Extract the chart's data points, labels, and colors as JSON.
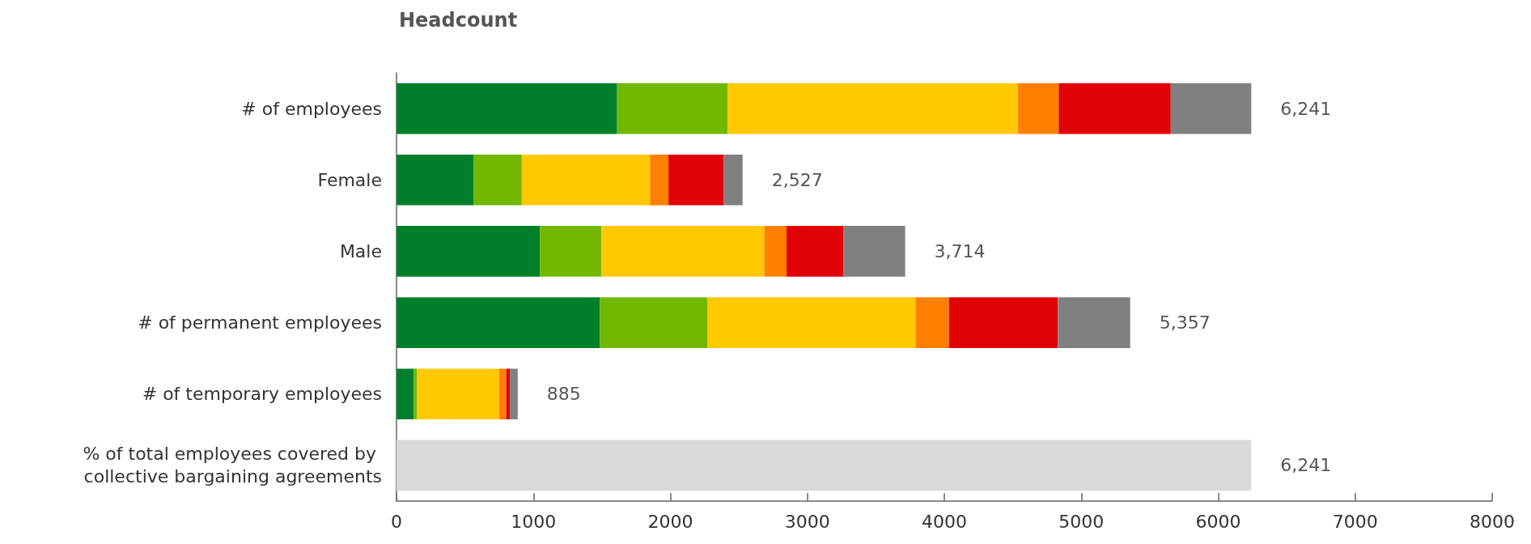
{
  "chart_data": {
    "type": "bar",
    "orientation": "horizontal",
    "stacked": true,
    "title": "Headcount",
    "categories": [
      "# of employees",
      "Female",
      "Male",
      "# of permanent employees",
      "# of temporary employees",
      "% of total employees covered by collective bargaining agreements"
    ],
    "series": [
      {
        "color": "#007f2b",
        "values": [
          1611,
          561,
          1047,
          1486,
          127,
          null
        ]
      },
      {
        "color": "#72b800",
        "values": [
          808,
          354,
          450,
          786,
          24,
          null
        ]
      },
      {
        "color": "#ffc800",
        "values": [
          2119,
          936,
          1189,
          1517,
          597,
          null
        ]
      },
      {
        "color": "#ff7f00",
        "values": [
          297,
          135,
          162,
          245,
          53,
          null
        ]
      },
      {
        "color": "#e00008",
        "values": [
          818,
          404,
          415,
          795,
          27,
          null
        ]
      },
      {
        "color": "#808080",
        "values": [
          588,
          137,
          451,
          528,
          57,
          null
        ]
      },
      {
        "color": "#d9d9d9",
        "values": [
          null,
          null,
          null,
          null,
          null,
          6241
        ]
      }
    ],
    "totals": [
      "6,241",
      "2,527",
      "3,714",
      "5,357",
      "885",
      "6,241"
    ],
    "xlim": [
      0,
      8000
    ],
    "xticks": [
      0,
      1000,
      2000,
      3000,
      4000,
      5000,
      6000,
      7000,
      8000
    ],
    "grid": false
  }
}
